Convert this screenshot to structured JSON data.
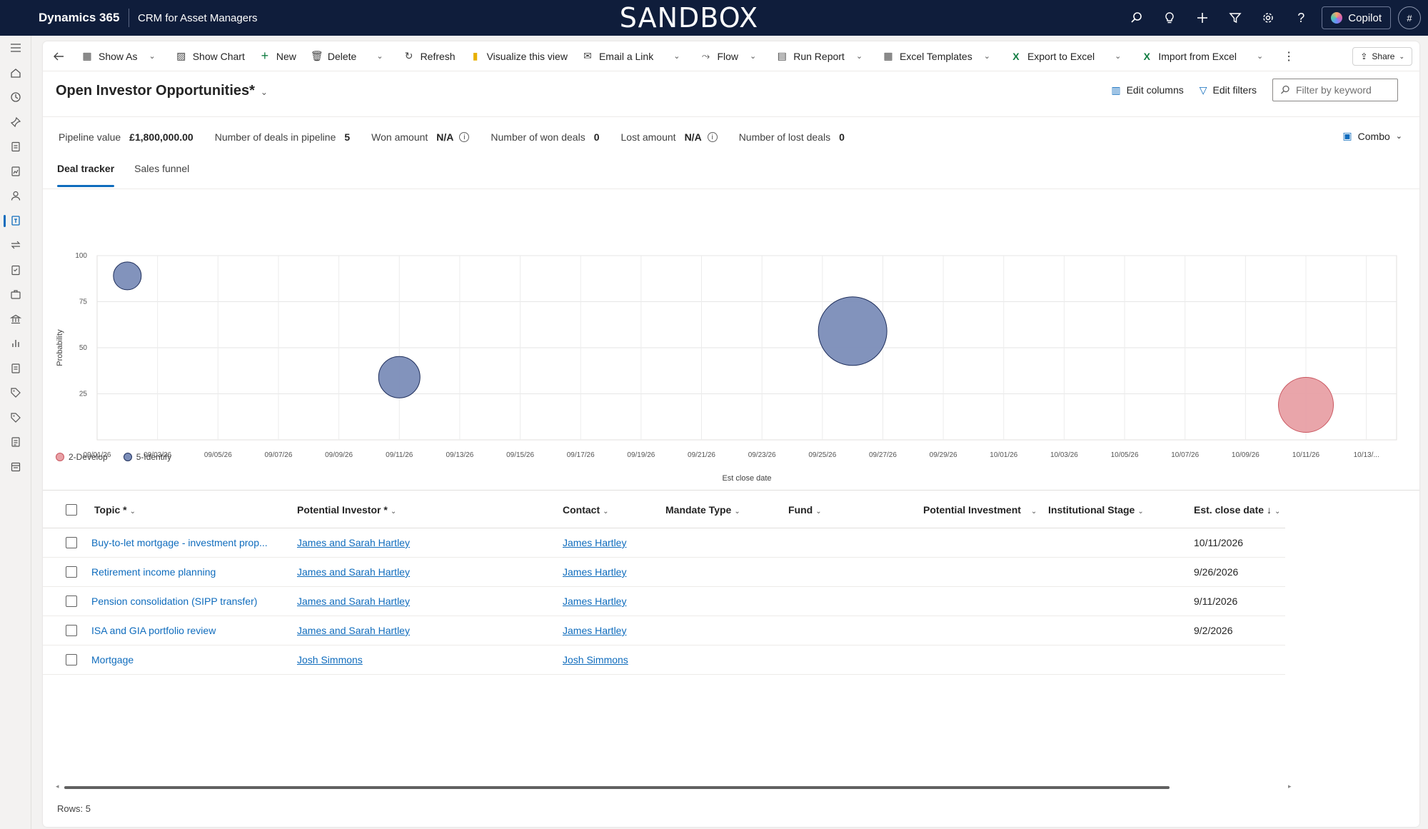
{
  "topbar": {
    "brand": "Dynamics 365",
    "app_name": "CRM for Asset Managers",
    "environment_banner": "SANDBOX",
    "copilot_label": "Copilot",
    "avatar_initials": "#"
  },
  "command_bar": {
    "show_as": "Show As",
    "show_chart": "Show Chart",
    "new": "New",
    "delete": "Delete",
    "refresh": "Refresh",
    "visualize": "Visualize this view",
    "email_link": "Email a Link",
    "flow": "Flow",
    "run_report": "Run Report",
    "excel_templates": "Excel Templates",
    "export_excel": "Export to Excel",
    "import_excel": "Import from Excel",
    "share": "Share"
  },
  "view": {
    "title": "Open Investor Opportunities*",
    "edit_columns": "Edit columns",
    "edit_filters": "Edit filters",
    "filter_placeholder": "Filter by keyword",
    "chart_mode": "Combo"
  },
  "metrics": {
    "pipeline_label": "Pipeline value",
    "pipeline_value": "£1,800,000.00",
    "deals_label": "Number of deals in pipeline",
    "deals_value": "5",
    "won_amount_label": "Won amount",
    "won_amount_value": "N/A",
    "won_deals_label": "Number of won deals",
    "won_deals_value": "0",
    "lost_amount_label": "Lost amount",
    "lost_amount_value": "N/A",
    "lost_deals_label": "Number of lost deals",
    "lost_deals_value": "0"
  },
  "tabs": [
    "Deal tracker",
    "Sales funnel"
  ],
  "chart_data": {
    "type": "scatter",
    "xlabel": "Est close date",
    "ylabel": "Probability",
    "ylim": [
      0,
      100
    ],
    "yticks": [
      25,
      50,
      75,
      100
    ],
    "xlim": [
      "2026-09-01",
      "2026-10-14"
    ],
    "xticks": [
      "09/01/26",
      "09/03/26",
      "09/05/26",
      "09/07/26",
      "09/09/26",
      "09/11/26",
      "09/13/26",
      "09/15/26",
      "09/17/26",
      "09/19/26",
      "09/21/26",
      "09/23/26",
      "09/25/26",
      "09/27/26",
      "09/29/26",
      "10/01/26",
      "10/03/26",
      "10/05/26",
      "10/07/26",
      "10/09/26",
      "10/11/26",
      "10/13/..."
    ],
    "grid": true,
    "legend_position": "bottom-left",
    "series": [
      {
        "name": "2-Develop",
        "color": "#e8a0a5",
        "points": [
          {
            "x": "2026-10-11",
            "y": 19,
            "size": 3
          }
        ]
      },
      {
        "name": "5-Identify",
        "color": "#7b8db8",
        "points": [
          {
            "x": "2026-09-02",
            "y": 89,
            "size": 1
          },
          {
            "x": "2026-09-11",
            "y": 34,
            "size": 2
          },
          {
            "x": "2026-09-26",
            "y": 59,
            "size": 4
          }
        ]
      }
    ]
  },
  "grid": {
    "columns": [
      "Topic",
      "Potential Investor",
      "Contact",
      "Mandate Type",
      "Fund",
      "Potential Investment",
      "Institutional Stage",
      "Est. close date"
    ],
    "rows": [
      {
        "topic": "Buy-to-let mortgage - investment prop...",
        "investor": "James and Sarah Hartley",
        "contact": "James Hartley",
        "close_date": "10/11/2026"
      },
      {
        "topic": "Retirement income planning",
        "investor": "James and Sarah Hartley",
        "contact": "James Hartley",
        "close_date": "9/26/2026"
      },
      {
        "topic": "Pension consolidation (SIPP transfer)",
        "investor": "James and Sarah Hartley",
        "contact": "James Hartley",
        "close_date": "9/11/2026"
      },
      {
        "topic": "ISA and GIA portfolio review",
        "investor": "James and Sarah Hartley",
        "contact": "James Hartley",
        "close_date": "9/2/2026"
      },
      {
        "topic": "Mortgage",
        "investor": "Josh Simmons",
        "contact": "Josh Simmons",
        "close_date": ""
      }
    ],
    "rows_label": "Rows: 5"
  }
}
